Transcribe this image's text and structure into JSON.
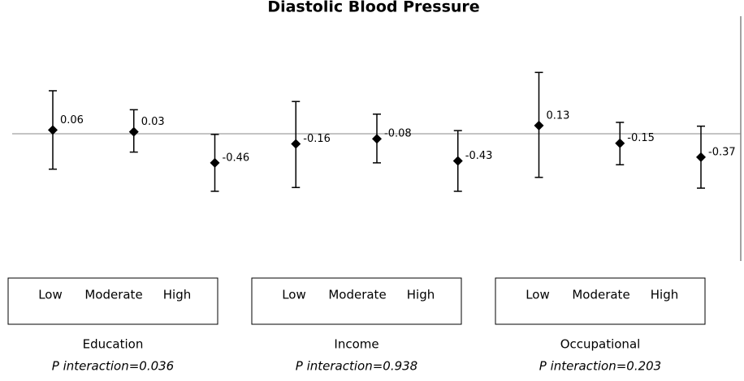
{
  "chart_data": {
    "type": "errorbar",
    "title": "Diastolic Blood Pressure",
    "values": [
      0.06,
      0.03,
      -0.46,
      -0.16,
      -0.08,
      -0.43,
      0.13,
      -0.15,
      -0.37
    ],
    "lower": [
      -0.56,
      -0.29,
      -0.91,
      -0.85,
      -0.46,
      -0.91,
      -0.69,
      -0.49,
      -0.86
    ],
    "upper": [
      0.68,
      0.38,
      -0.01,
      0.51,
      0.31,
      0.05,
      0.97,
      0.18,
      0.12
    ],
    "groups": [
      {
        "name": "Education",
        "levels": [
          "Low",
          "Moderate",
          "High"
        ],
        "p": "P interaction=0.036"
      },
      {
        "name": "Income",
        "levels": [
          "Low",
          "Moderate",
          "High"
        ],
        "p": "P interaction=0.938"
      },
      {
        "name": "Occupational",
        "levels": [
          "Low",
          "Moderate",
          "High"
        ],
        "p": "P interaction=0.203"
      }
    ],
    "ylim": [
      -2,
      1.5
    ],
    "zero_line": true,
    "color": "#000000"
  }
}
